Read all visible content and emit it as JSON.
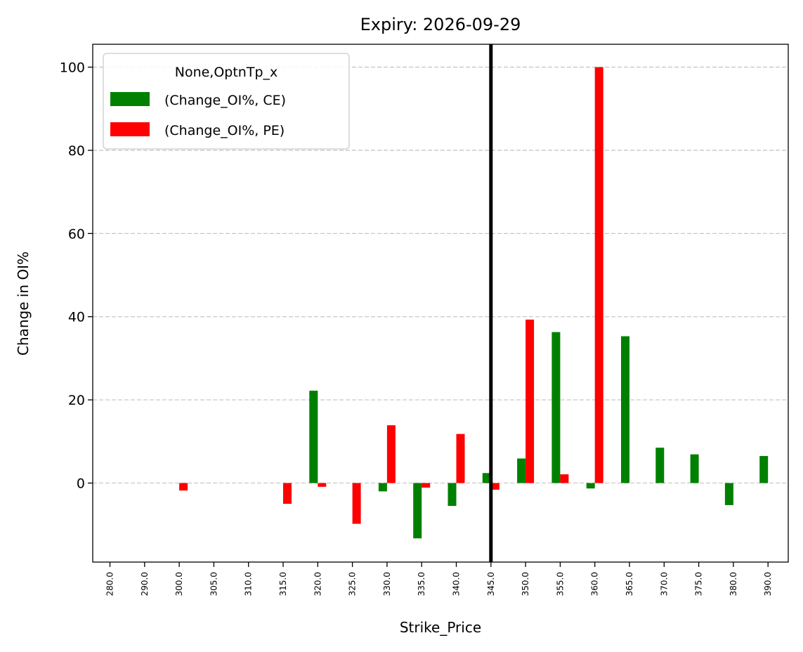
{
  "chart_data": {
    "type": "bar",
    "title": "Expiry: 2026-09-29",
    "xlabel": "Strike_Price",
    "ylabel": "Change in OI%",
    "categories": [
      "280.0",
      "290.0",
      "300.0",
      "305.0",
      "310.0",
      "315.0",
      "320.0",
      "325.0",
      "330.0",
      "335.0",
      "340.0",
      "345.0",
      "350.0",
      "355.0",
      "360.0",
      "365.0",
      "370.0",
      "375.0",
      "380.0",
      "390.0"
    ],
    "series": [
      {
        "name": "(Change_OI%, CE)",
        "color": "#008000",
        "values": [
          null,
          null,
          null,
          null,
          null,
          null,
          22.2,
          null,
          -2.0,
          -13.3,
          -5.5,
          2.4,
          5.9,
          36.3,
          -1.3,
          35.3,
          8.5,
          6.9,
          -5.3,
          6.5
        ]
      },
      {
        "name": "(Change_OI%, PE)",
        "color": "#ff0000",
        "values": [
          null,
          null,
          -1.8,
          null,
          null,
          -5.0,
          -0.9,
          -9.8,
          13.9,
          -1.1,
          11.8,
          -1.6,
          39.3,
          2.1,
          100.0,
          null,
          null,
          null,
          null,
          null
        ]
      }
    ],
    "ylim": [
      -19,
      105.5
    ],
    "yticks": [
      0,
      20,
      40,
      60,
      80,
      100
    ],
    "grid": "y-dashed",
    "legend": {
      "title": "None,OptnTp_x",
      "position": "top-left"
    },
    "reference_line": {
      "category": "345.0",
      "color": "#000000"
    }
  }
}
